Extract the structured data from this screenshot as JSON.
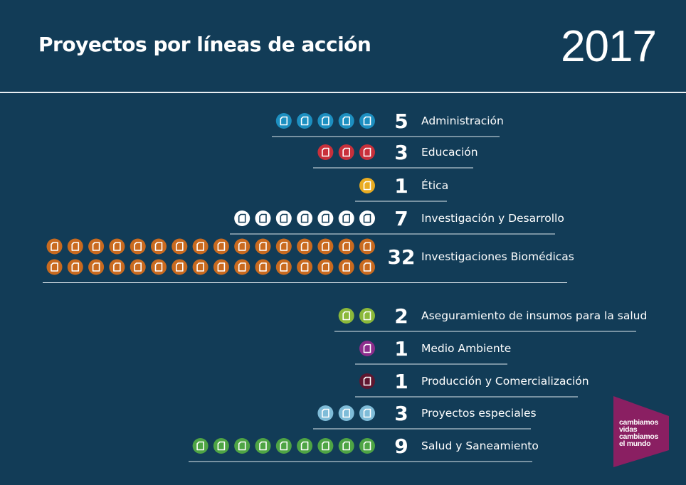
{
  "header": {
    "title": "Proyectos por líneas de acción",
    "year": "2017"
  },
  "chart_data": {
    "type": "bar",
    "title": "Proyectos por líneas de acción",
    "unit_icon": "document-icon",
    "categories": [
      "Administración",
      "Educación",
      "Ética",
      "Investigación y Desarrollo",
      "Investigaciones Biomédicas",
      "Aseguramiento de insumos para la salud",
      "Medio Ambiente",
      "Producción y Comercialización",
      "Proyectos especiales",
      "Salud y Saneamiento"
    ],
    "values": [
      5,
      3,
      1,
      7,
      32,
      2,
      1,
      1,
      3,
      9
    ],
    "colors": [
      "#1d8fc0",
      "#c8303b",
      "#e9ac22",
      "#ffffff",
      "#c96a1f",
      "#8bb83a",
      "#8c2d8c",
      "#5e1730",
      "#7fbcd8",
      "#4ea444"
    ]
  },
  "badge": {
    "lines": [
      "cambiamos",
      "vidas",
      "cambiamos",
      "el mundo"
    ],
    "color": "#8a1f62"
  }
}
